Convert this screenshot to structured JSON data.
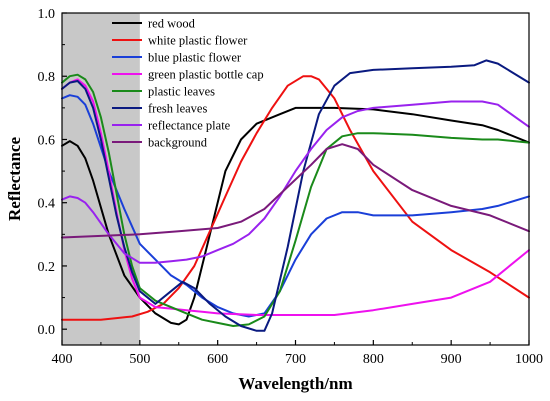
{
  "chart_data": {
    "type": "line",
    "xlabel": "Wavelength/nm",
    "ylabel": "Reflectance",
    "xlim": [
      400,
      1000
    ],
    "ylim": [
      -0.05,
      1.0
    ],
    "xticks": [
      400,
      500,
      600,
      700,
      800,
      900,
      1000
    ],
    "yticks": [
      0.0,
      0.2,
      0.4,
      0.6,
      0.8,
      1.0
    ],
    "xtick_labels": [
      "400",
      "500",
      "600",
      "700",
      "800",
      "900",
      "1000"
    ],
    "ytick_labels": [
      "0.0",
      "0.2",
      "0.4",
      "0.6",
      "0.8",
      "1.0"
    ],
    "shaded_region": {
      "x_from": 400,
      "x_to": 500,
      "color": "#c8c8c8"
    },
    "legend_position": "top-left",
    "grid": false,
    "series": [
      {
        "name": "red wood",
        "color": "#000000",
        "x": [
          400,
          410,
          420,
          430,
          440,
          460,
          480,
          500,
          520,
          540,
          550,
          560,
          570,
          590,
          610,
          630,
          650,
          680,
          700,
          720,
          750,
          800,
          850,
          900,
          940,
          960,
          1000
        ],
        "y": [
          0.58,
          0.595,
          0.58,
          0.54,
          0.47,
          0.3,
          0.17,
          0.1,
          0.05,
          0.02,
          0.015,
          0.03,
          0.1,
          0.3,
          0.5,
          0.6,
          0.65,
          0.68,
          0.7,
          0.7,
          0.7,
          0.695,
          0.68,
          0.66,
          0.645,
          0.63,
          0.59
        ]
      },
      {
        "name": "white plastic flower",
        "color": "#ee1111",
        "x": [
          400,
          450,
          470,
          490,
          510,
          530,
          550,
          570,
          590,
          610,
          630,
          650,
          670,
          690,
          710,
          720,
          730,
          750,
          770,
          800,
          850,
          900,
          950,
          1000
        ],
        "y": [
          0.03,
          0.03,
          0.035,
          0.04,
          0.055,
          0.08,
          0.13,
          0.2,
          0.31,
          0.42,
          0.53,
          0.62,
          0.7,
          0.77,
          0.8,
          0.8,
          0.79,
          0.73,
          0.63,
          0.5,
          0.34,
          0.25,
          0.18,
          0.1
        ]
      },
      {
        "name": "blue plastic flower",
        "color": "#1a3fd8",
        "x": [
          400,
          410,
          420,
          430,
          440,
          460,
          480,
          500,
          520,
          540,
          560,
          580,
          600,
          620,
          640,
          660,
          680,
          700,
          720,
          740,
          760,
          780,
          800,
          850,
          900,
          940,
          960,
          1000
        ],
        "y": [
          0.73,
          0.74,
          0.735,
          0.71,
          0.65,
          0.5,
          0.38,
          0.27,
          0.22,
          0.17,
          0.14,
          0.1,
          0.07,
          0.05,
          0.04,
          0.05,
          0.12,
          0.22,
          0.3,
          0.35,
          0.37,
          0.37,
          0.36,
          0.36,
          0.37,
          0.38,
          0.39,
          0.42
        ]
      },
      {
        "name": "green plastic bottle cap",
        "color": "#ee11ee",
        "x": [
          400,
          410,
          420,
          430,
          440,
          450,
          460,
          470,
          480,
          490,
          500,
          520,
          540,
          560,
          580,
          600,
          650,
          700,
          750,
          800,
          850,
          900,
          950,
          1000
        ],
        "y": [
          0.76,
          0.78,
          0.79,
          0.77,
          0.72,
          0.62,
          0.5,
          0.37,
          0.25,
          0.16,
          0.1,
          0.07,
          0.065,
          0.06,
          0.055,
          0.05,
          0.045,
          0.045,
          0.045,
          0.06,
          0.08,
          0.1,
          0.15,
          0.25
        ]
      },
      {
        "name": "plastic leaves",
        "color": "#1a8a1a",
        "x": [
          400,
          410,
          420,
          430,
          440,
          450,
          460,
          470,
          480,
          490,
          500,
          520,
          540,
          560,
          580,
          600,
          620,
          640,
          660,
          680,
          700,
          720,
          740,
          760,
          780,
          800,
          850,
          900,
          940,
          960,
          1000
        ],
        "y": [
          0.78,
          0.8,
          0.805,
          0.79,
          0.75,
          0.67,
          0.56,
          0.43,
          0.3,
          0.2,
          0.13,
          0.09,
          0.07,
          0.05,
          0.03,
          0.02,
          0.01,
          0.015,
          0.04,
          0.12,
          0.28,
          0.45,
          0.57,
          0.61,
          0.62,
          0.62,
          0.615,
          0.605,
          0.6,
          0.6,
          0.59
        ]
      },
      {
        "name": "fresh leaves",
        "color": "#0a1a80",
        "x": [
          400,
          410,
          420,
          430,
          440,
          450,
          460,
          470,
          480,
          490,
          500,
          520,
          540,
          555,
          570,
          590,
          610,
          630,
          650,
          660,
          670,
          690,
          710,
          730,
          750,
          770,
          800,
          850,
          900,
          930,
          945,
          960,
          1000
        ],
        "y": [
          0.76,
          0.78,
          0.785,
          0.76,
          0.7,
          0.6,
          0.48,
          0.36,
          0.26,
          0.18,
          0.12,
          0.08,
          0.12,
          0.15,
          0.13,
          0.08,
          0.04,
          0.01,
          -0.005,
          -0.005,
          0.05,
          0.26,
          0.5,
          0.68,
          0.77,
          0.81,
          0.82,
          0.825,
          0.83,
          0.835,
          0.85,
          0.84,
          0.78
        ]
      },
      {
        "name": "reflectance plate",
        "color": "#9922ee",
        "x": [
          400,
          410,
          420,
          430,
          440,
          460,
          480,
          500,
          520,
          540,
          560,
          580,
          600,
          620,
          640,
          660,
          680,
          700,
          720,
          740,
          760,
          780,
          800,
          850,
          900,
          940,
          960,
          1000
        ],
        "y": [
          0.41,
          0.42,
          0.415,
          0.4,
          0.37,
          0.3,
          0.24,
          0.21,
          0.21,
          0.215,
          0.22,
          0.23,
          0.25,
          0.27,
          0.3,
          0.35,
          0.42,
          0.5,
          0.57,
          0.63,
          0.67,
          0.69,
          0.7,
          0.71,
          0.72,
          0.72,
          0.71,
          0.64
        ]
      },
      {
        "name": "background",
        "color": "#7a1a7a",
        "x": [
          400,
          450,
          500,
          550,
          600,
          630,
          660,
          690,
          720,
          740,
          760,
          780,
          800,
          850,
          900,
          950,
          1000
        ],
        "y": [
          0.29,
          0.295,
          0.3,
          0.31,
          0.32,
          0.34,
          0.38,
          0.45,
          0.52,
          0.57,
          0.585,
          0.57,
          0.52,
          0.44,
          0.39,
          0.36,
          0.31
        ]
      }
    ]
  }
}
